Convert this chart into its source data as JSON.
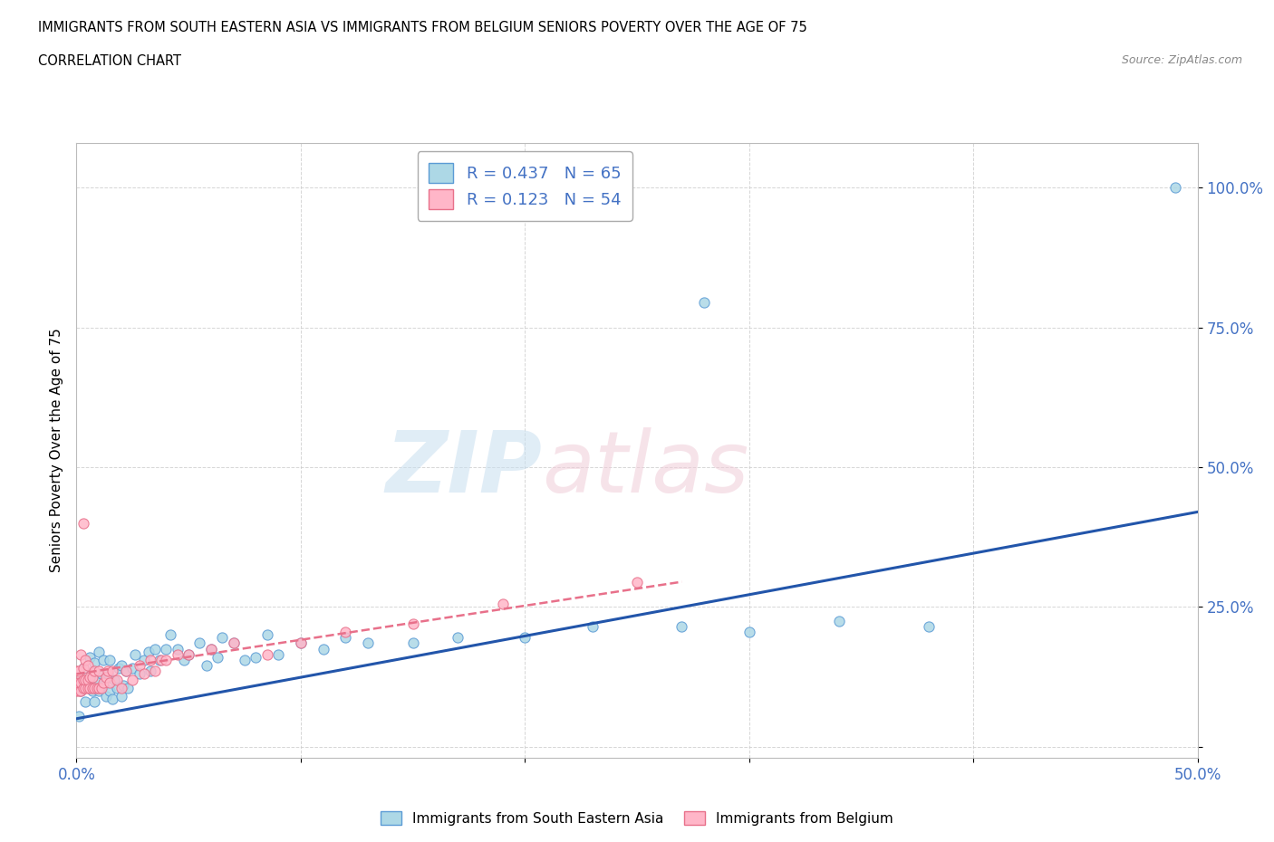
{
  "title": "IMMIGRANTS FROM SOUTH EASTERN ASIA VS IMMIGRANTS FROM BELGIUM SENIORS POVERTY OVER THE AGE OF 75",
  "subtitle": "CORRELATION CHART",
  "source": "Source: ZipAtlas.com",
  "ylabel": "Seniors Poverty Over the Age of 75",
  "xlim": [
    0.0,
    0.5
  ],
  "ylim": [
    -0.02,
    1.08
  ],
  "r1": 0.437,
  "n1": 65,
  "r2": 0.123,
  "n2": 54,
  "color_blue": "#add8e6",
  "color_blue_edge": "#5b9bd5",
  "color_pink": "#ffb6c8",
  "color_pink_edge": "#e8708a",
  "color_blue_text": "#4472c4",
  "color_trend_blue": "#2255aa",
  "color_trend_pink": "#e8708a",
  "legend1_label": "Immigrants from South Eastern Asia",
  "legend2_label": "Immigrants from Belgium",
  "blue_x": [
    0.001,
    0.002,
    0.003,
    0.004,
    0.005,
    0.006,
    0.007,
    0.008,
    0.008,
    0.009,
    0.01,
    0.01,
    0.011,
    0.012,
    0.012,
    0.013,
    0.014,
    0.015,
    0.015,
    0.016,
    0.017,
    0.018,
    0.019,
    0.02,
    0.02,
    0.021,
    0.022,
    0.023,
    0.025,
    0.026,
    0.028,
    0.03,
    0.032,
    0.033,
    0.035,
    0.037,
    0.04,
    0.042,
    0.045,
    0.048,
    0.05,
    0.055,
    0.058,
    0.06,
    0.063,
    0.065,
    0.07,
    0.075,
    0.08,
    0.085,
    0.09,
    0.1,
    0.11,
    0.12,
    0.13,
    0.15,
    0.17,
    0.2,
    0.23,
    0.27,
    0.3,
    0.34,
    0.38,
    0.28,
    0.49
  ],
  "blue_y": [
    0.055,
    0.1,
    0.14,
    0.08,
    0.12,
    0.16,
    0.1,
    0.08,
    0.15,
    0.12,
    0.1,
    0.17,
    0.13,
    0.11,
    0.155,
    0.09,
    0.13,
    0.1,
    0.155,
    0.085,
    0.12,
    0.105,
    0.14,
    0.09,
    0.145,
    0.11,
    0.135,
    0.105,
    0.14,
    0.165,
    0.13,
    0.155,
    0.17,
    0.135,
    0.175,
    0.155,
    0.175,
    0.2,
    0.175,
    0.155,
    0.165,
    0.185,
    0.145,
    0.175,
    0.16,
    0.195,
    0.185,
    0.155,
    0.16,
    0.2,
    0.165,
    0.185,
    0.175,
    0.195,
    0.185,
    0.185,
    0.195,
    0.195,
    0.215,
    0.215,
    0.205,
    0.225,
    0.215,
    0.795,
    1.0
  ],
  "pink_x": [
    0.0,
    0.0,
    0.0,
    0.001,
    0.001,
    0.001,
    0.002,
    0.002,
    0.002,
    0.003,
    0.003,
    0.003,
    0.003,
    0.004,
    0.004,
    0.004,
    0.005,
    0.005,
    0.005,
    0.006,
    0.006,
    0.007,
    0.007,
    0.008,
    0.008,
    0.009,
    0.01,
    0.01,
    0.011,
    0.012,
    0.013,
    0.014,
    0.015,
    0.016,
    0.018,
    0.02,
    0.022,
    0.025,
    0.028,
    0.03,
    0.033,
    0.035,
    0.038,
    0.04,
    0.045,
    0.05,
    0.06,
    0.07,
    0.085,
    0.1,
    0.12,
    0.15,
    0.19,
    0.25
  ],
  "pink_y": [
    0.1,
    0.115,
    0.135,
    0.1,
    0.115,
    0.135,
    0.1,
    0.115,
    0.165,
    0.105,
    0.12,
    0.14,
    0.4,
    0.105,
    0.12,
    0.155,
    0.105,
    0.12,
    0.145,
    0.105,
    0.125,
    0.105,
    0.125,
    0.105,
    0.135,
    0.105,
    0.105,
    0.135,
    0.105,
    0.115,
    0.125,
    0.135,
    0.115,
    0.135,
    0.12,
    0.105,
    0.135,
    0.12,
    0.145,
    0.13,
    0.155,
    0.135,
    0.155,
    0.155,
    0.165,
    0.165,
    0.175,
    0.185,
    0.165,
    0.185,
    0.205,
    0.22,
    0.255,
    0.295
  ],
  "grid_color": "#cccccc",
  "bg_color": "#ffffff"
}
